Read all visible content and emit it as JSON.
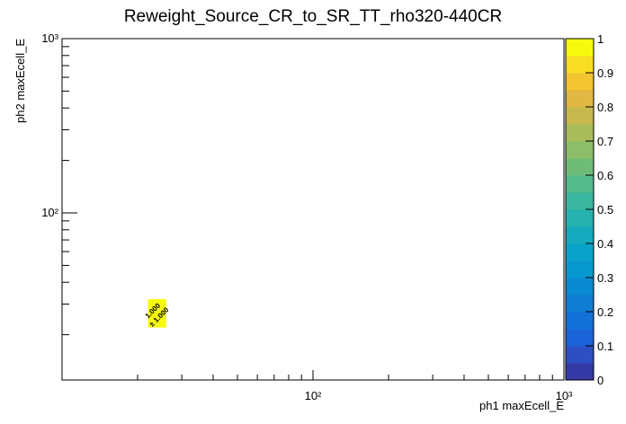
{
  "chart_data": {
    "type": "heatmap",
    "title": "Reweight_Source_CR_to_SR_TT_rho320-440CR",
    "x_label": "ph1 maxEcell_E",
    "y_label": "ph2 maxEcell_E",
    "x_scale": "log",
    "y_scale": "log",
    "xlim": [
      10,
      1000
    ],
    "ylim": [
      11,
      1000
    ],
    "xticks": [
      {
        "value": 100,
        "label": "10²"
      },
      {
        "value": 1000,
        "label": "10³"
      }
    ],
    "yticks": [
      {
        "value": 100,
        "label": "10²"
      },
      {
        "value": 1000,
        "label": "10³"
      }
    ],
    "xminorticks": [
      20,
      30,
      40,
      50,
      60,
      70,
      80,
      90,
      200,
      300,
      400,
      500,
      600,
      700,
      800,
      900
    ],
    "yminorticks": [
      20,
      30,
      40,
      50,
      60,
      70,
      80,
      90,
      200,
      300,
      400,
      500,
      600,
      700,
      800,
      900
    ],
    "x_edges": [
      22,
      26
    ],
    "y_edges": [
      22,
      32
    ],
    "values": [
      [
        1.0
      ]
    ],
    "value_labels": [
      [
        "1.000"
      ]
    ],
    "errors": [
      [
        1.0
      ]
    ],
    "error_labels": [
      [
        "± 1.000"
      ]
    ],
    "zlim": [
      0,
      1
    ],
    "zticks": [
      0,
      0.1,
      0.2,
      0.3,
      0.4,
      0.5,
      0.6,
      0.7,
      0.8,
      0.9,
      1
    ],
    "colormap": [
      "#3539a6",
      "#2e4ec4",
      "#1a63d9",
      "#1271d8",
      "#0f7dd4",
      "#0a8ad2",
      "#0898d0",
      "#09a2c8",
      "#15aabd",
      "#26b1ae",
      "#3ab79e",
      "#52ba8c",
      "#6fbc79",
      "#8cbd68",
      "#a8bc5a",
      "#c6ba4e",
      "#e0b842",
      "#f4c431",
      "#f9dd22",
      "#f8fa0d"
    ]
  }
}
